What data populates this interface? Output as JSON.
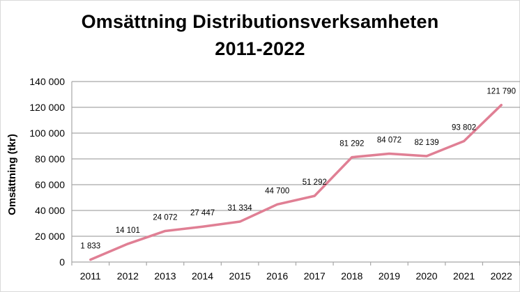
{
  "chart_data": {
    "type": "line",
    "title": "Omsättning Distributionsverksamheten",
    "subtitle": "2011-2022",
    "xlabel": "",
    "ylabel": "Omsättning (tkr)",
    "categories": [
      "2011",
      "2012",
      "2013",
      "2014",
      "2015",
      "2016",
      "2017",
      "2018",
      "2019",
      "2020",
      "2021",
      "2022"
    ],
    "series": [
      {
        "values": [
          1833,
          14101,
          24072,
          27447,
          31334,
          44700,
          51292,
          81292,
          84072,
          82139,
          93802,
          121790
        ],
        "data_labels": [
          "1 833",
          "14 101",
          "24 072",
          "27 447",
          "31 334",
          "44 700",
          "51 292",
          "81 292",
          "84 072",
          "82 139",
          "93 802",
          "121 790"
        ],
        "color": "#e07f94"
      }
    ],
    "ylim": [
      0,
      140000
    ],
    "yticks": [
      0,
      20000,
      40000,
      60000,
      80000,
      100000,
      120000,
      140000
    ],
    "ytick_labels": [
      "0",
      "20 000",
      "40 000",
      "60 000",
      "80 000",
      "100 000",
      "120 000",
      "140 000"
    ],
    "grid": true,
    "legend": "none",
    "gridline_color": "#a6a6a6"
  }
}
